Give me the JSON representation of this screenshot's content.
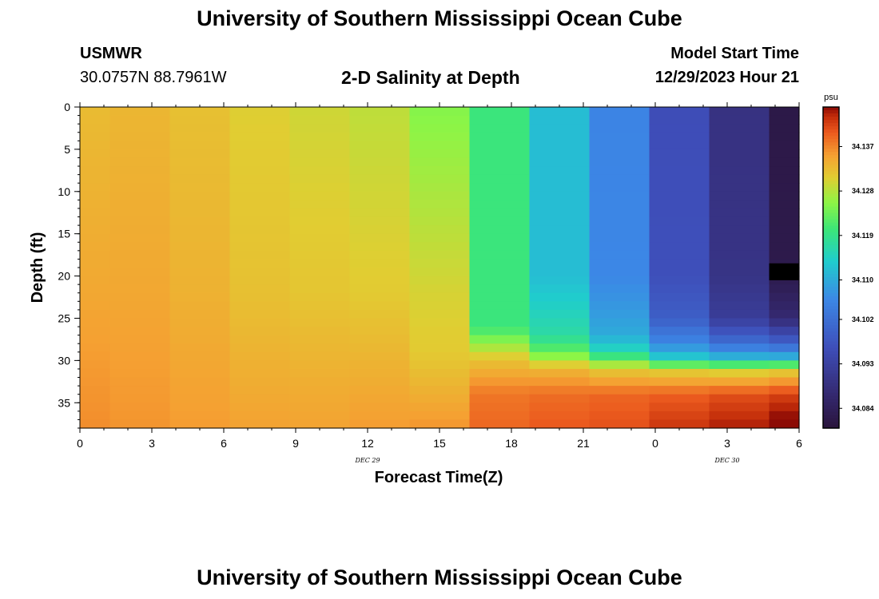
{
  "header": {
    "title": "University of Southern Mississippi Ocean Cube",
    "station": "USMWR",
    "coords": "30.0757N  88.7961W",
    "subtitle": "2-D Salinity at Depth",
    "model_start_label": "Model Start Time",
    "model_start_value": "12/29/2023 Hour 21"
  },
  "footer": {
    "title": "University of Southern Mississippi Ocean Cube"
  },
  "chart_data": {
    "type": "heatmap",
    "title": "2-D Salinity at Depth",
    "xlabel": "Forecast Time(Z)",
    "ylabel": "Depth (ft)",
    "x_ticks": [
      "0",
      "3",
      "6",
      "9",
      "12",
      "15",
      "18",
      "21",
      "0",
      "3",
      "6"
    ],
    "x_tick_hours": [
      0,
      3,
      6,
      9,
      12,
      15,
      18,
      21,
      24,
      27,
      30
    ],
    "date_labels": [
      {
        "text": "DEC 29",
        "hour": 12
      },
      {
        "text": "DEC 30",
        "hour": 27
      }
    ],
    "y_ticks": [
      "0",
      "5",
      "10",
      "15",
      "20",
      "25",
      "30",
      "35"
    ],
    "y_tick_values": [
      0,
      5,
      10,
      15,
      20,
      25,
      30,
      35
    ],
    "ylim": [
      0,
      38
    ],
    "xlim": [
      0,
      30
    ],
    "colorbar": {
      "unit": "psu",
      "min": 34.08,
      "max": 34.145,
      "tick_labels": [
        "34.137",
        "34.128",
        "34.119",
        "34.110",
        "34.102",
        "34.093",
        "34.084"
      ],
      "tick_values": [
        34.137,
        34.128,
        34.119,
        34.11,
        34.102,
        34.093,
        34.084
      ]
    },
    "columns": [
      {
        "start": 0,
        "end": 1.25,
        "profile": [
          [
            0,
            34.1325
          ],
          [
            22,
            34.1345
          ],
          [
            38,
            34.1365
          ]
        ]
      },
      {
        "start": 1.25,
        "end": 3.75,
        "profile": [
          [
            0,
            34.133
          ],
          [
            22,
            34.1345
          ],
          [
            38,
            34.136
          ]
        ]
      },
      {
        "start": 3.75,
        "end": 6.25,
        "profile": [
          [
            0,
            34.132
          ],
          [
            22,
            34.1335
          ],
          [
            38,
            34.1355
          ]
        ]
      },
      {
        "start": 6.25,
        "end": 8.75,
        "profile": [
          [
            0,
            34.1305
          ],
          [
            22,
            34.132
          ],
          [
            38,
            34.135
          ]
        ]
      },
      {
        "start": 8.75,
        "end": 11.25,
        "profile": [
          [
            0,
            34.1295
          ],
          [
            22,
            34.1315
          ],
          [
            38,
            34.135
          ]
        ]
      },
      {
        "start": 11.25,
        "end": 13.75,
        "profile": [
          [
            0,
            34.1285
          ],
          [
            22,
            34.131
          ],
          [
            38,
            34.1355
          ]
        ]
      },
      {
        "start": 13.75,
        "end": 16.25,
        "profile": [
          [
            0,
            34.125
          ],
          [
            22,
            34.13
          ],
          [
            29,
            34.131
          ],
          [
            38,
            34.136
          ]
        ]
      },
      {
        "start": 16.25,
        "end": 18.75,
        "profile": [
          [
            0,
            34.12
          ],
          [
            26,
            34.12
          ],
          [
            28,
            34.126
          ],
          [
            30,
            34.132
          ],
          [
            34,
            34.138
          ],
          [
            38,
            34.139
          ]
        ]
      },
      {
        "start": 18.75,
        "end": 21.25,
        "profile": [
          [
            0,
            34.112
          ],
          [
            20,
            34.112
          ],
          [
            23,
            34.114
          ],
          [
            27,
            34.117
          ],
          [
            29,
            34.123
          ],
          [
            31,
            34.133
          ],
          [
            34,
            34.1385
          ],
          [
            38,
            34.14
          ]
        ]
      },
      {
        "start": 21.25,
        "end": 23.75,
        "profile": [
          [
            0,
            34.1055
          ],
          [
            20,
            34.106
          ],
          [
            24,
            34.108
          ],
          [
            27,
            34.11
          ],
          [
            29,
            34.116
          ],
          [
            31,
            34.131
          ],
          [
            34,
            34.139
          ],
          [
            38,
            34.1405
          ]
        ]
      },
      {
        "start": 23.75,
        "end": 26.25,
        "profile": [
          [
            0,
            34.096
          ],
          [
            20,
            34.0965
          ],
          [
            25,
            34.099
          ],
          [
            28,
            34.106
          ],
          [
            30,
            34.115
          ],
          [
            31,
            34.13
          ],
          [
            34,
            34.1395
          ],
          [
            38,
            34.1425
          ]
        ]
      },
      {
        "start": 26.25,
        "end": 28.75,
        "profile": [
          [
            0,
            34.089
          ],
          [
            20,
            34.0895
          ],
          [
            25,
            34.092
          ],
          [
            28,
            34.102
          ],
          [
            30,
            34.113
          ],
          [
            31,
            34.129
          ],
          [
            34,
            34.1405
          ],
          [
            38,
            34.144
          ]
        ]
      },
      {
        "start": 28.75,
        "end": 30,
        "profile": [
          [
            0,
            34.0815
          ],
          [
            18,
            34.082
          ],
          [
            21,
            34.083
          ],
          [
            25,
            34.087
          ],
          [
            28,
            34.1
          ],
          [
            30,
            34.113
          ],
          [
            31,
            34.13
          ],
          [
            34,
            34.1415
          ],
          [
            38,
            34.1465
          ]
        ]
      }
    ],
    "missing_cells": [
      {
        "start": 28.75,
        "end": 30,
        "depth_top": 18.5,
        "depth_bottom": 20.5
      }
    ]
  }
}
